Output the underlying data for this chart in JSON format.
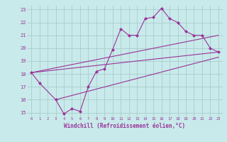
{
  "bg_color": "#c8eaea",
  "grid_color": "#aacccc",
  "line_color": "#993399",
  "line1_x": [
    0,
    1,
    3,
    4,
    5,
    6,
    7,
    8,
    9,
    10,
    11,
    12,
    13,
    14,
    15,
    16,
    17,
    18,
    19,
    20,
    21,
    22,
    23
  ],
  "line1_y": [
    18.1,
    17.3,
    16.0,
    14.9,
    15.3,
    15.1,
    17.0,
    18.2,
    18.4,
    19.9,
    21.5,
    21.0,
    21.0,
    22.3,
    22.4,
    23.1,
    22.3,
    22.0,
    21.3,
    21.0,
    21.0,
    20.0,
    19.7
  ],
  "line2_x": [
    0,
    23
  ],
  "line2_y": [
    18.1,
    19.7
  ],
  "line3_x": [
    3,
    23
  ],
  "line3_y": [
    16.0,
    19.3
  ],
  "line4_x": [
    0,
    23
  ],
  "line4_y": [
    18.1,
    21.0
  ],
  "xmin": 0,
  "xmax": 23,
  "ymin": 15,
  "ymax": 23,
  "xlabel": "Windchill (Refroidissement éolien,°C)",
  "yticks": [
    15,
    16,
    17,
    18,
    19,
    20,
    21,
    22,
    23
  ],
  "xticks": [
    0,
    1,
    2,
    3,
    4,
    5,
    6,
    7,
    8,
    9,
    10,
    11,
    12,
    13,
    14,
    15,
    16,
    17,
    18,
    19,
    20,
    21,
    22,
    23
  ]
}
